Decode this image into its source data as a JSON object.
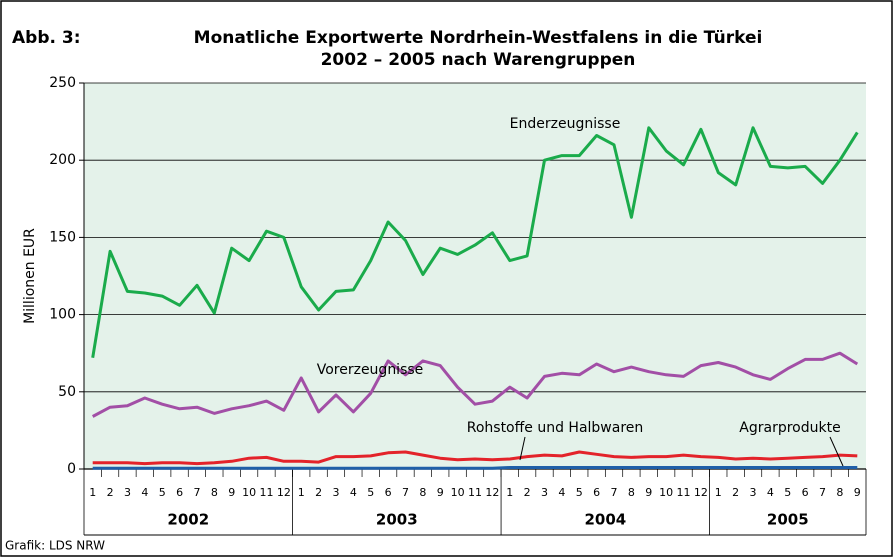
{
  "chart_data": {
    "type": "line",
    "figure_label": "Abb. 3:",
    "title": "Monatliche Exportwerte Nordrhein-Westfalens in die Türkei",
    "subtitle": "2002 – 2005 nach Warengruppen",
    "ylabel": "Millionen EUR",
    "source": "Grafik: LDS NRW",
    "categories": [
      "1",
      "2",
      "3",
      "4",
      "5",
      "6",
      "7",
      "8",
      "9",
      "10",
      "11",
      "12",
      "1",
      "2",
      "3",
      "4",
      "5",
      "6",
      "7",
      "8",
      "9",
      "10",
      "11",
      "12",
      "1",
      "2",
      "3",
      "4",
      "5",
      "6",
      "7",
      "8",
      "9",
      "10",
      "11",
      "12",
      "1",
      "2",
      "3",
      "4",
      "5",
      "6",
      "7",
      "8",
      "9"
    ],
    "year_groups": [
      "2002",
      "2003",
      "2004",
      "2005"
    ],
    "ylim": [
      0,
      250
    ],
    "yticks": [
      0,
      50,
      100,
      150,
      200,
      250
    ],
    "grid": true,
    "series": [
      {
        "name": "Enderzeugnisse",
        "color": "#1aab4b",
        "values": [
          72,
          141,
          115,
          114,
          112,
          106,
          119,
          101,
          143,
          135,
          154,
          150,
          118,
          103,
          115,
          116,
          135,
          160,
          148,
          126,
          143,
          139,
          145,
          153,
          135,
          138,
          200,
          203,
          203,
          216,
          210,
          163,
          221,
          206,
          197,
          220,
          192,
          184,
          221,
          196,
          195,
          196,
          185,
          200,
          218
        ]
      },
      {
        "name": "Vorerzeugnisse",
        "color": "#a24fa6",
        "values": [
          34,
          40,
          41,
          46,
          42,
          39,
          40,
          36,
          39,
          41,
          44,
          38,
          59,
          37,
          48,
          37,
          49,
          70,
          61,
          70,
          67,
          53,
          42,
          44,
          53,
          46,
          60,
          62,
          61,
          68,
          63,
          66,
          63,
          61,
          60,
          67,
          69,
          66,
          61,
          58,
          65,
          71,
          71,
          75,
          68
        ]
      },
      {
        "name": "Rohstoffe und Halbwaren",
        "color": "#e3232a",
        "values": [
          4,
          4,
          4,
          3.5,
          4,
          4,
          3.5,
          4,
          5,
          7,
          7.5,
          5,
          5,
          4.5,
          8,
          8,
          8.5,
          10.5,
          11,
          9,
          7,
          6,
          6.5,
          6,
          6.5,
          8,
          9,
          8.5,
          11,
          9.5,
          8,
          7.5,
          8,
          8,
          9,
          8,
          7.5,
          6.5,
          7,
          6.5,
          7,
          7.5,
          8,
          9,
          8.5
        ]
      },
      {
        "name": "Agrarprodukte",
        "color": "#1f5fa8",
        "values": [
          0.5,
          0.5,
          0.5,
          0.5,
          0.5,
          0.5,
          0.5,
          0.5,
          0.5,
          0.5,
          0.5,
          0.5,
          0.5,
          0.5,
          0.5,
          0.5,
          0.5,
          0.5,
          0.5,
          0.5,
          0.5,
          0.5,
          0.5,
          0.5,
          1,
          1,
          1,
          1,
          1,
          1,
          1,
          1,
          1,
          1,
          1,
          1,
          1,
          1,
          1,
          1,
          1,
          1,
          1,
          1,
          1
        ]
      }
    ]
  }
}
